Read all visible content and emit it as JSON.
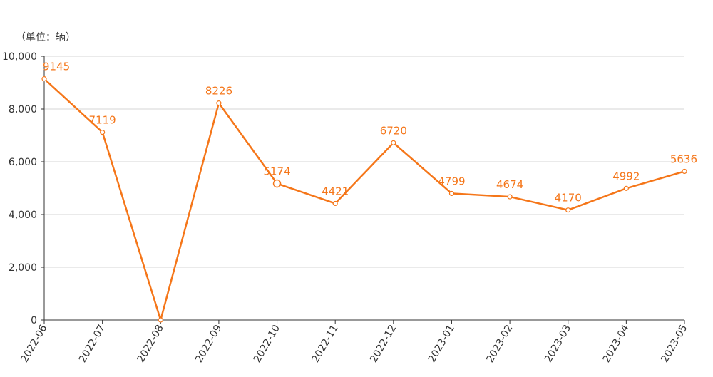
{
  "chart_data": {
    "type": "line",
    "title": "",
    "unit_label": "（单位：辆）",
    "categories": [
      "2022-06",
      "2022-07",
      "2022-08",
      "2022-09",
      "2022-10",
      "2022-11",
      "2022-12",
      "2023-01",
      "2023-02",
      "2023-03",
      "2023-04",
      "2023-05"
    ],
    "series": [
      {
        "values": [
          9145,
          7119,
          0,
          8226,
          5174,
          4421,
          6720,
          4799,
          4674,
          4170,
          4992,
          5636
        ]
      }
    ],
    "data_labels": [
      "9145",
      "7119",
      "",
      "8226",
      "5174",
      "4421",
      "6720",
      "4799",
      "4674",
      "4170",
      "4992",
      "5636"
    ],
    "ylim": [
      0,
      10000
    ],
    "yticks": [
      0,
      2000,
      4000,
      6000,
      8000,
      10000
    ],
    "ytick_labels": [
      "0",
      "2,000",
      "4,000",
      "6,000",
      "8,000",
      "10,000"
    ],
    "grid": true,
    "highlighted_point_index": 4,
    "color": "#f57619"
  }
}
